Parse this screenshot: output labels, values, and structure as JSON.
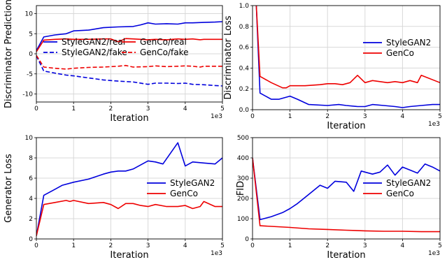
{
  "colors": {
    "stylegan2": "#0000dd",
    "genco": "#ee0000",
    "grid": "#d8d8d8"
  },
  "chart_data": [
    {
      "type": "line",
      "xlabel": "Iteration",
      "ylabel": "Discriminator Prediction",
      "x_exponent": "1e3",
      "xlim": [
        0,
        5000
      ],
      "ylim": [
        -12,
        12
      ],
      "xticks": [
        0,
        1,
        2,
        3,
        4,
        5
      ],
      "yticks": [
        -10,
        -5,
        0,
        5,
        10
      ],
      "legend": {
        "placement": "center-right",
        "columns": 2
      },
      "series": [
        {
          "name": "StyleGAN2/real",
          "color": "#0000dd",
          "dash": false,
          "x": [
            0,
            200,
            500,
            800,
            1000,
            1400,
            1800,
            2200,
            2600,
            2800,
            3000,
            3200,
            3500,
            3800,
            4000,
            4200,
            4500,
            4800,
            5000
          ],
          "y": [
            0.8,
            4.2,
            4.7,
            5.0,
            5.7,
            5.9,
            6.5,
            6.7,
            6.8,
            7.2,
            7.7,
            7.4,
            7.5,
            7.4,
            7.7,
            7.7,
            7.8,
            7.9,
            8.0
          ]
        },
        {
          "name": "GenCo/real",
          "color": "#ee0000",
          "dash": false,
          "x": [
            0,
            200,
            500,
            800,
            1000,
            1400,
            1800,
            2000,
            2200,
            2400,
            2600,
            2800,
            3000,
            3200,
            3500,
            3800,
            4000,
            4200,
            4400,
            4500,
            4800,
            5000
          ],
          "y": [
            0.5,
            3.4,
            3.6,
            3.7,
            3.6,
            3.6,
            3.7,
            3.7,
            3.0,
            3.8,
            3.7,
            3.6,
            3.5,
            3.6,
            3.5,
            3.7,
            3.6,
            3.7,
            3.5,
            3.6,
            3.6,
            3.6
          ]
        },
        {
          "name": "StyleGAN2/fake",
          "color": "#0000dd",
          "dash": true,
          "x": [
            0,
            200,
            500,
            800,
            1000,
            1400,
            1800,
            2200,
            2600,
            3000,
            3200,
            3500,
            3800,
            4000,
            4200,
            4500,
            4800,
            5000
          ],
          "y": [
            -0.5,
            -4.3,
            -4.8,
            -5.3,
            -5.5,
            -6.0,
            -6.5,
            -6.8,
            -7.0,
            -7.6,
            -7.3,
            -7.3,
            -7.4,
            -7.3,
            -7.6,
            -7.7,
            -7.9,
            -8.0
          ]
        },
        {
          "name": "GenCo/fake",
          "color": "#ee0000",
          "dash": true,
          "x": [
            0,
            200,
            500,
            800,
            1000,
            1400,
            1800,
            2200,
            2400,
            2600,
            3000,
            3200,
            3500,
            3800,
            4000,
            4200,
            4400,
            4500,
            4800,
            5000
          ],
          "y": [
            -0.4,
            -3.3,
            -3.6,
            -3.8,
            -3.6,
            -3.4,
            -3.3,
            -3.1,
            -2.9,
            -3.3,
            -3.2,
            -3.0,
            -3.2,
            -3.1,
            -3.0,
            -3.1,
            -3.3,
            -3.1,
            -3.1,
            -3.1
          ]
        }
      ]
    },
    {
      "type": "line",
      "xlabel": "Iteration",
      "ylabel": "Discriminator Loss",
      "x_exponent": "1e3",
      "xlim": [
        0,
        5000
      ],
      "ylim": [
        0.0,
        1.0
      ],
      "xticks": [
        0,
        1,
        2,
        3,
        4,
        5
      ],
      "yticks": [
        0.0,
        0.2,
        0.4,
        0.6,
        0.8,
        1.0
      ],
      "legend": {
        "placement": "center-right",
        "columns": 1
      },
      "series": [
        {
          "name": "StyleGAN2",
          "color": "#0000dd",
          "dash": false,
          "x": [
            0,
            100,
            200,
            500,
            700,
            1000,
            1200,
            1500,
            2000,
            2300,
            2500,
            2800,
            3000,
            3200,
            3500,
            3800,
            4000,
            4200,
            4500,
            4800,
            5000
          ],
          "y": [
            1.6,
            1.0,
            0.16,
            0.1,
            0.1,
            0.13,
            0.1,
            0.05,
            0.04,
            0.05,
            0.04,
            0.03,
            0.03,
            0.05,
            0.04,
            0.03,
            0.02,
            0.03,
            0.04,
            0.05,
            0.05
          ]
        },
        {
          "name": "GenCo",
          "color": "#ee0000",
          "dash": false,
          "x": [
            0,
            100,
            200,
            500,
            800,
            900,
            1000,
            1400,
            1800,
            2000,
            2200,
            2400,
            2600,
            2800,
            3000,
            3200,
            3400,
            3600,
            3800,
            4000,
            4200,
            4400,
            4500,
            5000
          ],
          "y": [
            1.6,
            1.0,
            0.32,
            0.26,
            0.21,
            0.21,
            0.23,
            0.23,
            0.24,
            0.25,
            0.25,
            0.24,
            0.26,
            0.33,
            0.26,
            0.28,
            0.27,
            0.26,
            0.27,
            0.26,
            0.28,
            0.26,
            0.33,
            0.26
          ]
        }
      ]
    },
    {
      "type": "line",
      "xlabel": "Iteration",
      "ylabel": "Generator Loss",
      "x_exponent": "1e3",
      "xlim": [
        0,
        5000
      ],
      "ylim": [
        0,
        10
      ],
      "xticks": [
        0,
        1,
        2,
        3,
        4,
        5
      ],
      "yticks": [
        0,
        2,
        4,
        6,
        8,
        10
      ],
      "legend": {
        "placement": "center-right",
        "columns": 1
      },
      "series": [
        {
          "name": "StyleGAN2",
          "color": "#0000dd",
          "dash": false,
          "x": [
            0,
            200,
            500,
            700,
            1000,
            1400,
            1800,
            2000,
            2200,
            2400,
            2600,
            3000,
            3200,
            3400,
            3800,
            4000,
            4200,
            4500,
            4800,
            5000
          ],
          "y": [
            0.3,
            4.3,
            4.9,
            5.3,
            5.6,
            5.9,
            6.4,
            6.6,
            6.7,
            6.7,
            6.9,
            7.7,
            7.6,
            7.4,
            9.5,
            7.2,
            7.6,
            7.5,
            7.4,
            8.0
          ]
        },
        {
          "name": "GenCo",
          "color": "#ee0000",
          "dash": false,
          "x": [
            0,
            200,
            500,
            800,
            900,
            1000,
            1400,
            1800,
            2000,
            2200,
            2400,
            2600,
            2800,
            3000,
            3200,
            3500,
            3800,
            4000,
            4200,
            4400,
            4500,
            4800,
            5000
          ],
          "y": [
            0.3,
            3.4,
            3.6,
            3.8,
            3.7,
            3.8,
            3.5,
            3.6,
            3.4,
            3.0,
            3.5,
            3.5,
            3.3,
            3.2,
            3.4,
            3.2,
            3.2,
            3.3,
            3.0,
            3.2,
            3.7,
            3.2,
            3.2
          ]
        }
      ]
    },
    {
      "type": "line",
      "xlabel": "Iteration",
      "ylabel": "FID",
      "x_exponent": "1e3",
      "xlim": [
        0,
        5000
      ],
      "ylim": [
        0,
        500
      ],
      "xticks": [
        0,
        1,
        2,
        3,
        4,
        5
      ],
      "yticks": [
        0,
        100,
        200,
        300,
        400,
        500
      ],
      "legend": {
        "placement": "center-right",
        "columns": 1
      },
      "series": [
        {
          "name": "StyleGAN2",
          "color": "#0000dd",
          "dash": false,
          "x": [
            0,
            200,
            500,
            800,
            1000,
            1200,
            1500,
            1800,
            2000,
            2200,
            2500,
            2700,
            2900,
            3000,
            3200,
            3400,
            3600,
            3800,
            4000,
            4200,
            4400,
            4600,
            4800,
            5000
          ],
          "y": [
            400,
            95,
            110,
            130,
            150,
            175,
            220,
            265,
            250,
            285,
            280,
            235,
            335,
            330,
            320,
            330,
            365,
            315,
            355,
            340,
            325,
            370,
            355,
            335
          ]
        },
        {
          "name": "GenCo",
          "color": "#ee0000",
          "dash": false,
          "x": [
            0,
            200,
            500,
            1000,
            1500,
            2000,
            2500,
            3000,
            3500,
            4000,
            4500,
            5000
          ],
          "y": [
            400,
            65,
            62,
            57,
            50,
            47,
            43,
            40,
            38,
            38,
            36,
            36
          ]
        }
      ]
    }
  ]
}
